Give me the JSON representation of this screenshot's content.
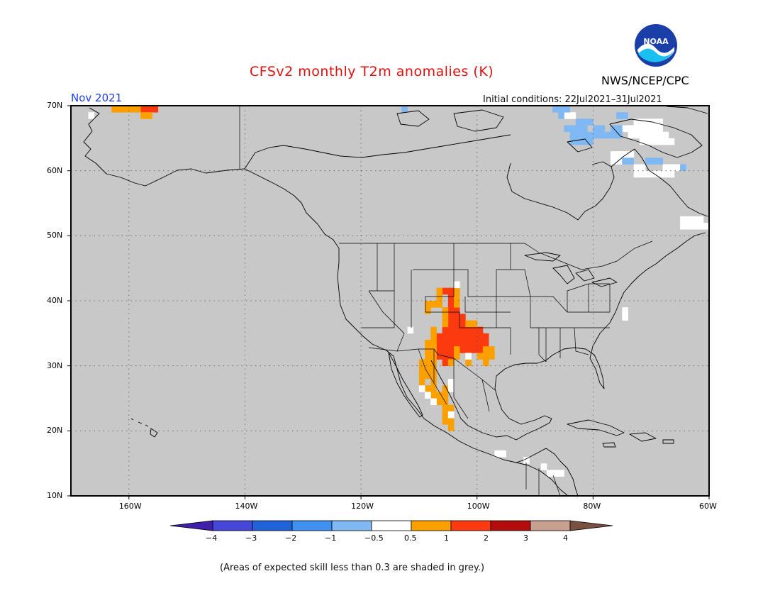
{
  "header": {
    "title": "CFSv2 monthly T2m anomalies (K)",
    "month_label": "Nov 2021",
    "initial_conditions": "Initial conditions: 22Jul2021–31Jul2021",
    "agency": "NWS/NCEP/CPC",
    "logo_text": "NOAA"
  },
  "map": {
    "lon_range": [
      -170,
      -60
    ],
    "lat_range": [
      10,
      70
    ],
    "lat_labels": [
      "70N",
      "60N",
      "50N",
      "40N",
      "30N",
      "20N",
      "10N"
    ],
    "lon_labels": [
      "160W",
      "140W",
      "120W",
      "100W",
      "80W",
      "60W"
    ],
    "background_color": "#c8c8c8",
    "anomaly_cells": {
      "warm_1_2": [
        [
          -105.5,
          41.5
        ],
        [
          -104.5,
          41.5
        ],
        [
          -104.5,
          40.5
        ],
        [
          -104.5,
          39.5
        ],
        [
          -103.5,
          38.5
        ],
        [
          -104.5,
          38.5
        ],
        [
          -103.5,
          37.5
        ],
        [
          -104.5,
          37.5
        ],
        [
          -102.5,
          37.5
        ],
        [
          -104.5,
          36.5
        ],
        [
          -103.5,
          36.5
        ],
        [
          -102.5,
          36.5
        ],
        [
          -105.5,
          35.5
        ],
        [
          -104.5,
          35.5
        ],
        [
          -103.5,
          35.5
        ],
        [
          -102.5,
          35.5
        ],
        [
          -101.5,
          35.5
        ],
        [
          -100.5,
          35.5
        ],
        [
          -99.5,
          35.5
        ],
        [
          -106.5,
          34.5
        ],
        [
          -105.5,
          34.5
        ],
        [
          -104.5,
          34.5
        ],
        [
          -103.5,
          34.5
        ],
        [
          -102.5,
          34.5
        ],
        [
          -101.5,
          34.5
        ],
        [
          -100.5,
          34.5
        ],
        [
          -99.5,
          34.5
        ],
        [
          -98.5,
          34.5
        ],
        [
          -106.5,
          33.5
        ],
        [
          -105.5,
          33.5
        ],
        [
          -104.5,
          33.5
        ],
        [
          -103.5,
          33.5
        ],
        [
          -102.5,
          33.5
        ],
        [
          -101.5,
          33.5
        ],
        [
          -100.5,
          33.5
        ],
        [
          -99.5,
          33.5
        ],
        [
          -98.5,
          33.5
        ],
        [
          -106.5,
          32.5
        ],
        [
          -105.5,
          32.5
        ],
        [
          -104.5,
          32.5
        ],
        [
          -102.5,
          32.5
        ],
        [
          -101.5,
          32.5
        ],
        [
          -100.5,
          32.5
        ],
        [
          -99.5,
          32.5
        ],
        [
          -106.5,
          31.5
        ],
        [
          -105.5,
          31.5
        ],
        [
          -104.5,
          31.5
        ],
        [
          -105.5,
          30.5
        ],
        [
          -157.5,
          69.5
        ],
        [
          -156.5,
          69.5
        ],
        [
          -155.5,
          69.5
        ]
      ],
      "warm_0_5_1": [
        [
          -106.5,
          41.5
        ],
        [
          -103.5,
          41.5
        ],
        [
          -106.5,
          40.5
        ],
        [
          -103.5,
          40.5
        ],
        [
          -107.5,
          39.5
        ],
        [
          -108.5,
          39.5
        ],
        [
          -106.5,
          39.5
        ],
        [
          -103.5,
          39.5
        ],
        [
          -108.5,
          38.5
        ],
        [
          -105.5,
          38.5
        ],
        [
          -105.5,
          37.5
        ],
        [
          -105.5,
          36.5
        ],
        [
          -101.5,
          36.5
        ],
        [
          -100.5,
          36.5
        ],
        [
          -107.5,
          35.5
        ],
        [
          -107.5,
          34.5
        ],
        [
          -107.5,
          33.5
        ],
        [
          -108.5,
          33.5
        ],
        [
          -108.5,
          32.5
        ],
        [
          -107.5,
          32.5
        ],
        [
          -103.5,
          32.5
        ],
        [
          -98.5,
          32.5
        ],
        [
          -97.5,
          32.5
        ],
        [
          -108.5,
          31.5
        ],
        [
          -107.5,
          31.5
        ],
        [
          -103.5,
          31.5
        ],
        [
          -99.5,
          31.5
        ],
        [
          -98.5,
          31.5
        ],
        [
          -97.5,
          31.5
        ],
        [
          -109.5,
          30.5
        ],
        [
          -108.5,
          30.5
        ],
        [
          -107.5,
          30.5
        ],
        [
          -104.5,
          30.5
        ],
        [
          -101.5,
          30.5
        ],
        [
          -98.5,
          30.5
        ],
        [
          -109.5,
          29.5
        ],
        [
          -108.5,
          29.5
        ],
        [
          -107.5,
          29.5
        ],
        [
          -109.5,
          28.5
        ],
        [
          -108.5,
          28.5
        ],
        [
          -107.5,
          28.5
        ],
        [
          -109.5,
          27.5
        ],
        [
          -107.5,
          27.5
        ],
        [
          -108.5,
          26.5
        ],
        [
          -107.5,
          26.5
        ],
        [
          -105.5,
          26.5
        ],
        [
          -107.5,
          25.5
        ],
        [
          -106.5,
          25.5
        ],
        [
          -105.5,
          25.5
        ],
        [
          -106.5,
          24.5
        ],
        [
          -105.5,
          24.5
        ],
        [
          -105.5,
          23.5
        ],
        [
          -104.5,
          23.5
        ],
        [
          -105.5,
          22.5
        ],
        [
          -105.5,
          21.5
        ],
        [
          -104.5,
          21.5
        ],
        [
          -104.5,
          20.5
        ],
        [
          -162.5,
          69.5
        ],
        [
          -161.5,
          69.5
        ],
        [
          -160.5,
          69.5
        ],
        [
          -159.5,
          69.5
        ],
        [
          -158.5,
          69.5
        ],
        [
          -157.5,
          68.5
        ],
        [
          -156.5,
          68.5
        ]
      ],
      "neutral": [
        [
          -111.5,
          35.5
        ],
        [
          -103.5,
          42.5
        ],
        [
          -101.5,
          31.5
        ],
        [
          -104.5,
          27.5
        ],
        [
          -104.5,
          26.5
        ],
        [
          -104.5,
          22.5
        ],
        [
          -109.5,
          26.5
        ],
        [
          -108.5,
          25.5
        ],
        [
          -107.5,
          24.5
        ],
        [
          -96.5,
          16.5
        ],
        [
          -95.5,
          16.5
        ],
        [
          -91.5,
          15.5
        ],
        [
          -88.5,
          14.5
        ],
        [
          -87.5,
          13.5
        ],
        [
          -86.5,
          13.5
        ],
        [
          -85.5,
          13.5
        ],
        [
          -166.5,
          68.5
        ],
        [
          -74.5,
          38.5
        ],
        [
          -74.5,
          37.5
        ],
        [
          -64.5,
          51.5
        ],
        [
          -63.5,
          51.5
        ],
        [
          -62.5,
          51.5
        ],
        [
          -61.5,
          51.5
        ],
        [
          -60.5,
          51.5
        ],
        [
          -64.5,
          52.5
        ],
        [
          -63.5,
          52.5
        ],
        [
          -62.5,
          52.5
        ],
        [
          -61.5,
          52.5
        ],
        [
          -76.5,
          62.5
        ],
        [
          -75.5,
          62.5
        ],
        [
          -74.5,
          62.5
        ],
        [
          -73.5,
          62.5
        ],
        [
          -76.5,
          61.5
        ],
        [
          -75.5,
          61.5
        ],
        [
          -74.5,
          61.5
        ],
        [
          -72.5,
          59.5
        ],
        [
          -71.5,
          59.5
        ],
        [
          -70.5,
          59.5
        ],
        [
          -69.5,
          59.5
        ],
        [
          -68.5,
          59.5
        ],
        [
          -67.5,
          59.5
        ],
        [
          -66.5,
          59.5
        ],
        [
          -72.5,
          60.5
        ],
        [
          -71.5,
          60.5
        ],
        [
          -67.5,
          60.5
        ],
        [
          -66.5,
          60.5
        ],
        [
          -65.5,
          60.5
        ],
        [
          -74.5,
          66.5
        ],
        [
          -73.5,
          66.5
        ],
        [
          -72.5,
          66.5
        ],
        [
          -71.5,
          66.5
        ],
        [
          -70.5,
          66.5
        ],
        [
          -69.5,
          66.5
        ],
        [
          -68.5,
          66.5
        ],
        [
          -73.5,
          65.5
        ],
        [
          -72.5,
          65.5
        ],
        [
          -71.5,
          65.5
        ],
        [
          -70.5,
          65.5
        ],
        [
          -69.5,
          65.5
        ],
        [
          -68.5,
          65.5
        ],
        [
          -67.5,
          65.5
        ],
        [
          -71.5,
          64.5
        ],
        [
          -70.5,
          64.5
        ],
        [
          -69.5,
          64.5
        ],
        [
          -68.5,
          64.5
        ],
        [
          -67.5,
          64.5
        ],
        [
          -66.5,
          64.5
        ],
        [
          -72.5,
          67.5
        ],
        [
          -71.5,
          67.5
        ],
        [
          -70.5,
          67.5
        ],
        [
          -69.5,
          67.5
        ],
        [
          -68.5,
          67.5
        ],
        [
          -84.5,
          68.5
        ],
        [
          -83.5,
          68.5
        ]
      ],
      "cool_-1_-0_5": [
        [
          -86.5,
          69.5
        ],
        [
          -85.5,
          69.5
        ],
        [
          -84.5,
          69.5
        ],
        [
          -85.5,
          68.5
        ],
        [
          -82.5,
          67.5
        ],
        [
          -81.5,
          67.5
        ],
        [
          -80.5,
          67.5
        ],
        [
          -83.5,
          66.5
        ],
        [
          -82.5,
          66.5
        ],
        [
          -81.5,
          66.5
        ],
        [
          -79.5,
          66.5
        ],
        [
          -78.5,
          66.5
        ],
        [
          -84.5,
          66.5
        ],
        [
          -83.5,
          65.5
        ],
        [
          -82.5,
          65.5
        ],
        [
          -81.5,
          65.5
        ],
        [
          -80.5,
          65.5
        ],
        [
          -79.5,
          65.5
        ],
        [
          -78.5,
          65.5
        ],
        [
          -77.5,
          65.5
        ],
        [
          -83.5,
          64.5
        ],
        [
          -82.5,
          64.5
        ],
        [
          -81.5,
          64.5
        ],
        [
          -80.5,
          64.5
        ],
        [
          -75.5,
          68.5
        ],
        [
          -74.5,
          68.5
        ],
        [
          -76.5,
          66.5
        ],
        [
          -75.5,
          66.5
        ],
        [
          -76.5,
          65.5
        ],
        [
          -75.5,
          65.5
        ],
        [
          -74.5,
          61.5
        ],
        [
          -73.5,
          61.5
        ],
        [
          -70.5,
          61.5
        ],
        [
          -69.5,
          61.5
        ],
        [
          -68.5,
          61.5
        ],
        [
          -64.5,
          60.5
        ],
        [
          -112.5,
          69.5
        ]
      ]
    }
  },
  "colorbar": {
    "colors": [
      "#4020a8",
      "#4646d8",
      "#2062d8",
      "#4090f0",
      "#80b8f4",
      "#ffffff",
      "#fca000",
      "#fc3a10",
      "#b40c0c",
      "#c8a090",
      "#7a5040"
    ],
    "labels": [
      "−4",
      "−3",
      "−2",
      "−1",
      "−0.5",
      "0.5",
      "1",
      "2",
      "3",
      "4"
    ]
  },
  "footnote": "(Areas of expected skill less than 0.3 are shaded in grey.)"
}
